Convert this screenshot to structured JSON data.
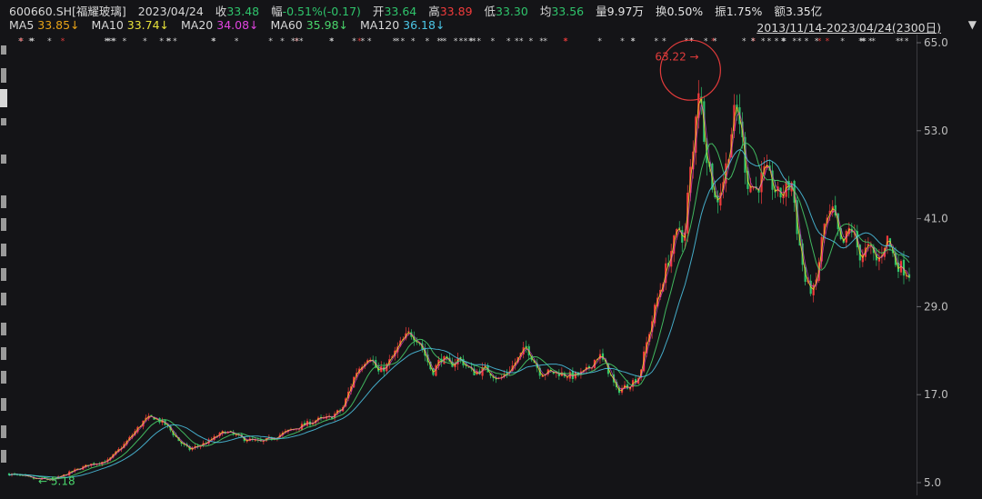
{
  "header": {
    "code": "600660.SH[福耀玻璃]",
    "date": "2023/04/24",
    "close_label": "收",
    "close": "33.48",
    "change_label": "幅",
    "change": "-0.51%(-0.17)",
    "open_label": "开",
    "open": "33.64",
    "high_label": "高",
    "high": "33.89",
    "low_label": "低",
    "low": "33.30",
    "avg_label": "均",
    "avg": "33.56",
    "volume_label": "量",
    "volume": "9.97万",
    "turnover_label": "换",
    "turnover": "0.50%",
    "amplitude_label": "振",
    "amplitude": "1.75%",
    "amount_label": "额",
    "amount": "3.35亿"
  },
  "ma_bar": {
    "ma5_label": "MA5",
    "ma5": "33.85↓",
    "ma10_label": "MA10",
    "ma10": "33.74↓",
    "ma20_label": "MA20",
    "ma20": "34.08↓",
    "ma60_label": "MA60",
    "ma60": "35.98↓",
    "ma120_label": "MA120",
    "ma120": "36.18↓"
  },
  "range": "2013/11/14-2023/04/24(2300日)",
  "colors": {
    "up": "#f03b3b",
    "down": "#2fc36b",
    "ma5": "#e8a317",
    "ma10": "#e8e23a",
    "ma20": "#e044e0",
    "ma60": "#49d46b",
    "ma120": "#4cc6e6",
    "marker": "#e23b3b"
  },
  "chart_data": {
    "type": "candlestick",
    "x_range": [
      "2013/11/14",
      "2023/04/24"
    ],
    "trading_days": 2300,
    "ylim": [
      5.0,
      65.0
    ],
    "y_ticks": [
      "65.0",
      "53.0",
      "41.0",
      "29.0",
      "17.0",
      "5.0"
    ],
    "annotations": {
      "high": "63.22",
      "low": "5.18"
    },
    "close_path": [
      [
        0,
        6.2
      ],
      [
        0.03,
        5.5
      ],
      [
        0.05,
        5.4
      ],
      [
        0.07,
        6.5
      ],
      [
        0.09,
        7.5
      ],
      [
        0.11,
        8.0
      ],
      [
        0.13,
        10.5
      ],
      [
        0.15,
        13.5
      ],
      [
        0.16,
        14.0
      ],
      [
        0.175,
        12.8
      ],
      [
        0.19,
        10.5
      ],
      [
        0.2,
        9.5
      ],
      [
        0.22,
        10.5
      ],
      [
        0.24,
        12.0
      ],
      [
        0.26,
        11.0
      ],
      [
        0.28,
        10.5
      ],
      [
        0.3,
        11.5
      ],
      [
        0.32,
        12.5
      ],
      [
        0.34,
        13.5
      ],
      [
        0.355,
        13.8
      ],
      [
        0.37,
        15.0
      ],
      [
        0.385,
        20.0
      ],
      [
        0.4,
        22.5
      ],
      [
        0.41,
        20.0
      ],
      [
        0.42,
        21.0
      ],
      [
        0.435,
        24.0
      ],
      [
        0.445,
        25.5
      ],
      [
        0.455,
        24.5
      ],
      [
        0.47,
        20.0
      ],
      [
        0.48,
        22.0
      ],
      [
        0.49,
        21.0
      ],
      [
        0.5,
        22.0
      ],
      [
        0.515,
        20.0
      ],
      [
        0.53,
        20.5
      ],
      [
        0.545,
        19.0
      ],
      [
        0.56,
        21.0
      ],
      [
        0.575,
        23.5
      ],
      [
        0.59,
        20.0
      ],
      [
        0.61,
        20.0
      ],
      [
        0.625,
        19.5
      ],
      [
        0.64,
        20.0
      ],
      [
        0.655,
        22.5
      ],
      [
        0.665,
        20.5
      ],
      [
        0.675,
        17.5
      ],
      [
        0.69,
        18.5
      ],
      [
        0.7,
        19.5
      ],
      [
        0.71,
        25.0
      ],
      [
        0.72,
        30.0
      ],
      [
        0.735,
        36.5
      ],
      [
        0.745,
        40.0
      ],
      [
        0.75,
        37.5
      ],
      [
        0.755,
        46.0
      ],
      [
        0.76,
        50.0
      ],
      [
        0.765,
        60.0
      ],
      [
        0.77,
        55.0
      ],
      [
        0.775,
        50.0
      ],
      [
        0.785,
        43.0
      ],
      [
        0.795,
        47.0
      ],
      [
        0.805,
        55.0
      ],
      [
        0.81,
        56.0
      ],
      [
        0.82,
        46.0
      ],
      [
        0.83,
        45.0
      ],
      [
        0.84,
        47.5
      ],
      [
        0.855,
        44.0
      ],
      [
        0.87,
        46.0
      ],
      [
        0.875,
        40.0
      ],
      [
        0.885,
        32.0
      ],
      [
        0.895,
        31.0
      ],
      [
        0.905,
        40.0
      ],
      [
        0.915,
        42.0
      ],
      [
        0.925,
        37.0
      ],
      [
        0.935,
        40.0
      ],
      [
        0.945,
        36.0
      ],
      [
        0.955,
        37.0
      ],
      [
        0.965,
        35.0
      ],
      [
        0.975,
        38.5
      ],
      [
        0.985,
        35.0
      ],
      [
        0.995,
        34.0
      ],
      [
        1.0,
        33.48
      ]
    ]
  }
}
